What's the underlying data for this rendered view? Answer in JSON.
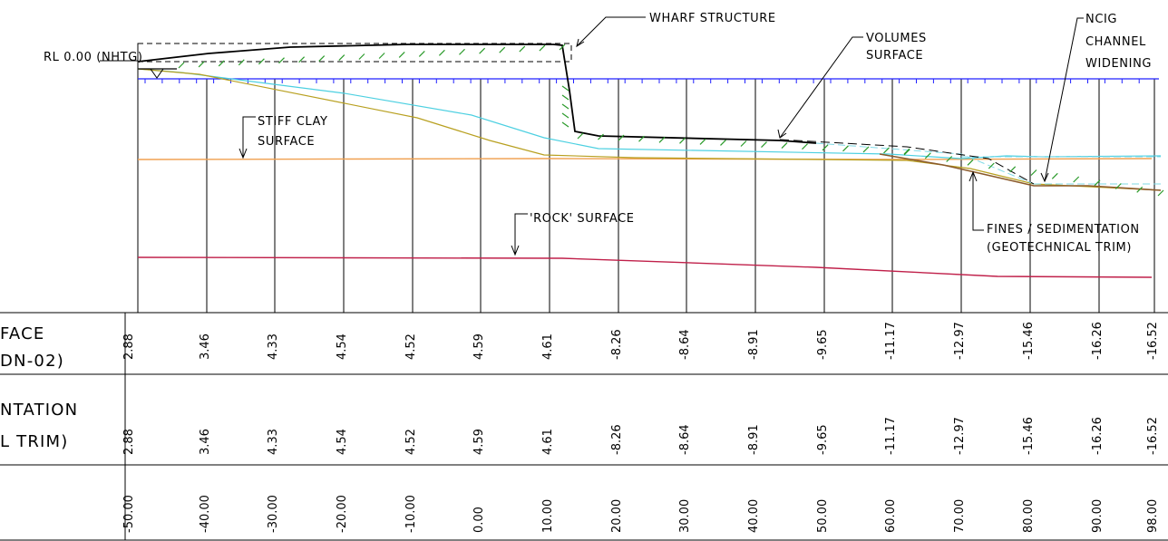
{
  "chart_data": {
    "type": "line",
    "annotations": {
      "rl_datum": "RL 0.00 (NHTG)",
      "wharf_structure": "WHARF STRUCTURE",
      "volumes_surface_1": "VOLUMES",
      "volumes_surface_2": "SURFACE",
      "ncig_1": "NCIG",
      "ncig_2": "CHANNEL",
      "ncig_3": "WIDENING",
      "stiff_clay_1": "STIFF CLAY",
      "stiff_clay_2": "SURFACE",
      "rock_surface": "'ROCK' SURFACE",
      "fines_1": "FINES / SEDIMENTATION",
      "fines_2": "(GEOTECHNICAL TRIM)"
    },
    "table": {
      "row_labels": [
        [
          "FACE",
          "DN-02)"
        ],
        [
          "NTATION",
          "L TRIM)"
        ],
        []
      ],
      "chainages": [
        "-50.00",
        "-40.00",
        "-30.00",
        "-20.00",
        "-10.00",
        "0.00",
        "10.00",
        "20.00",
        "30.00",
        "40.00",
        "50.00",
        "60.00",
        "70.00",
        "80.00",
        "90.00",
        "98.00"
      ],
      "surface_levels": [
        "2.88",
        "3.46",
        "4.33",
        "4.54",
        "4.52",
        "4.59",
        "4.61",
        "-8.26",
        "-8.64",
        "-8.91",
        "-9.65",
        "-11.17",
        "-12.97",
        "-15.46",
        "-16.26",
        "-16.52"
      ],
      "sedimentation_levels": [
        "2.88",
        "3.46",
        "4.33",
        "4.54",
        "4.52",
        "4.59",
        "4.61",
        "-8.26",
        "-8.64",
        "-8.91",
        "-9.65",
        "-11.17",
        "-12.97",
        "-15.46",
        "-16.26",
        "-16.52"
      ]
    },
    "series": [
      {
        "color": "#000000"
      },
      {
        "color": "#4dd0e1"
      },
      {
        "color": "#b8a020"
      },
      {
        "color": "#f0a050"
      },
      {
        "color": "#c0204a"
      },
      {
        "color": "#2020ff"
      }
    ]
  }
}
